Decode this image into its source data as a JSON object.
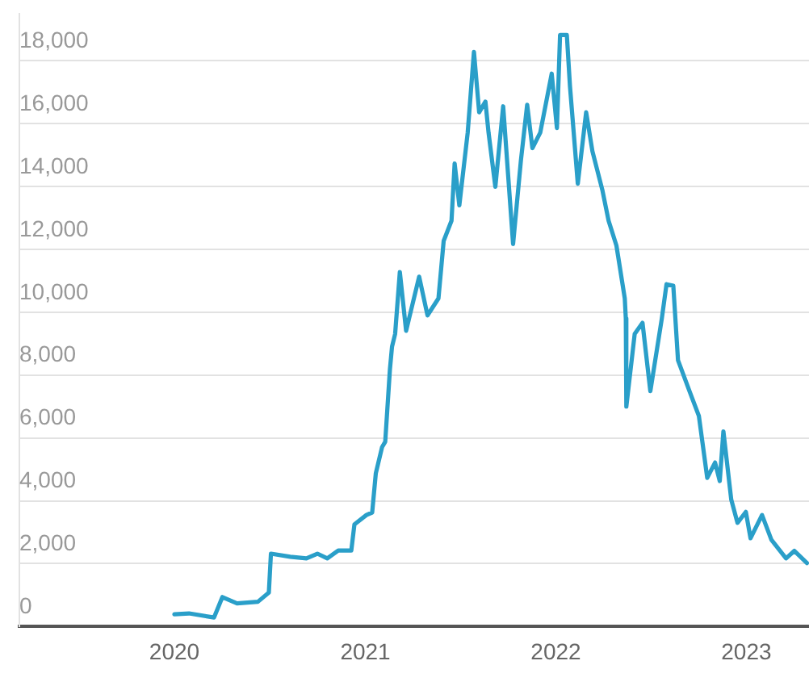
{
  "chart_data": {
    "type": "line",
    "x": [
      "2020-01-01",
      "2020-01-29",
      "2020-03-17",
      "2020-04-02",
      "2020-04-30",
      "2020-06-09",
      "2020-06-30",
      "2020-07-04",
      "2020-08-10",
      "2020-09-10",
      "2020-10-01",
      "2020-10-20",
      "2020-11-10",
      "2020-12-05",
      "2020-12-11",
      "2021-01-03",
      "2021-01-14",
      "2021-01-21",
      "2021-02-02",
      "2021-02-08",
      "2021-02-17",
      "2021-02-21",
      "2021-02-27",
      "2021-03-08",
      "2021-03-20",
      "2021-04-14",
      "2021-04-30",
      "2021-05-21",
      "2021-05-31",
      "2021-06-15",
      "2021-06-21",
      "2021-06-30",
      "2021-07-16",
      "2021-07-28",
      "2021-08-07",
      "2021-08-19",
      "2021-08-25",
      "2021-09-07",
      "2021-09-22",
      "2021-10-11",
      "2021-10-26",
      "2021-11-07",
      "2021-11-17",
      "2021-12-02",
      "2021-12-24",
      "2022-01-03",
      "2022-01-09",
      "2022-01-22",
      "2022-01-28",
      "2022-02-12",
      "2022-02-28",
      "2022-03-12",
      "2022-03-31",
      "2022-04-12",
      "2022-04-27",
      "2022-05-13",
      "2022-05-15",
      "2022-05-16",
      "2022-06-01",
      "2022-06-16",
      "2022-07-01",
      "2022-07-23",
      "2022-08-01",
      "2022-08-14",
      "2022-08-23",
      "2022-09-14",
      "2022-10-02",
      "2022-10-18",
      "2022-11-02",
      "2022-11-11",
      "2022-11-18",
      "2022-12-03",
      "2022-12-15",
      "2022-12-31",
      "2023-01-09",
      "2023-01-31",
      "2023-02-18",
      "2023-03-18",
      "2023-04-03",
      "2023-04-27"
    ],
    "values": [
      390,
      420,
      290,
      940,
      740,
      790,
      1080,
      2320,
      2220,
      2170,
      2320,
      2170,
      2420,
      2420,
      3250,
      3550,
      3630,
      4880,
      5710,
      5880,
      8180,
      8900,
      9310,
      11280,
      9410,
      11130,
      9900,
      10440,
      12270,
      12910,
      14730,
      13400,
      15710,
      18280,
      16360,
      16700,
      15710,
      13990,
      16550,
      12170,
      14830,
      16600,
      15220,
      15710,
      17590,
      15860,
      18820,
      18820,
      17190,
      14090,
      16360,
      15120,
      13890,
      12910,
      12120,
      10440,
      9800,
      7000,
      9310,
      9660,
      7490,
      9800,
      10890,
      10840,
      8470,
      7490,
      6700,
      4730,
      5220,
      4630,
      6210,
      4040,
      3300,
      3650,
      2810,
      3550,
      2760,
      2170,
      2410,
      2020
    ],
    "color": "#2a9fc9",
    "xlim": [
      "2019-03-10",
      "2023-05-01"
    ],
    "xticks": [
      "2020",
      "2021",
      "2022",
      "2023"
    ],
    "ylim": [
      0,
      19500
    ],
    "yticks": [
      0,
      {
        "value": 2000,
        "label": "2,000"
      },
      {
        "value": 4000,
        "label": "4,000"
      },
      {
        "value": 6000,
        "label": "6,000"
      },
      {
        "value": 8000,
        "label": "8,000"
      },
      {
        "value": 10000,
        "label": "10,000"
      },
      {
        "value": 12000,
        "label": "12,000"
      },
      {
        "value": 14000,
        "label": "14,000"
      },
      {
        "value": 16000,
        "label": "16,000"
      },
      {
        "value": 18000,
        "label": "18,000"
      }
    ],
    "grid": "y",
    "legend": false,
    "marker": "none"
  }
}
